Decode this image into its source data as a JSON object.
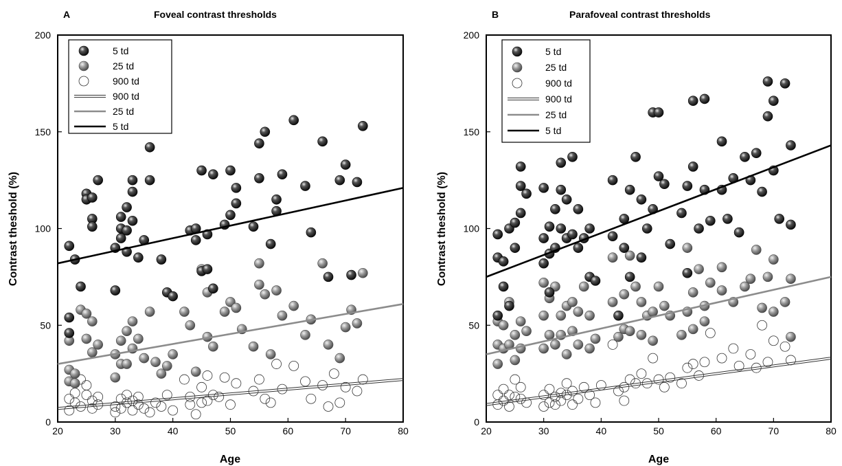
{
  "figure": {
    "panels": [
      {
        "label": "A",
        "title": "Foveal contrast thresholds"
      },
      {
        "label": "B",
        "title": "Parafoveal contrast thresholds"
      }
    ],
    "xlabel": "Age",
    "ylabel": "Contrast theshold (%)",
    "legend": [
      "5 td",
      "25 td",
      "900 td",
      "900 td",
      "25 td",
      "5 td"
    ]
  },
  "colors": {
    "dark_marker": "#222222",
    "gray_marker": "#8c8c8c",
    "open_marker_stroke": "#333333",
    "line_5td": "#000000",
    "line_25td": "#8c8c8c",
    "line_900td": "#333333"
  },
  "chart_data": [
    {
      "type": "scatter",
      "title": "Foveal contrast thresholds",
      "panel_label": "A",
      "xlabel": "Age",
      "ylabel": "Contrast theshold (%)",
      "xlim": [
        20,
        80
      ],
      "ylim": [
        0,
        200
      ],
      "xticks": [
        20,
        30,
        40,
        50,
        60,
        70,
        80
      ],
      "yticks": [
        0,
        50,
        100,
        150,
        200
      ],
      "legend_position": "top-left",
      "series": [
        {
          "name": "5 td",
          "kind": "points",
          "marker": "dark-sphere",
          "x": [
            22,
            22,
            22,
            23,
            24,
            25,
            25,
            26,
            26,
            26,
            27,
            30,
            30,
            31,
            31,
            31,
            32,
            32,
            32,
            33,
            33,
            33,
            34,
            35,
            36,
            36,
            38,
            39,
            40,
            43,
            44,
            44,
            45,
            45,
            46,
            46,
            47,
            47,
            49,
            50,
            50,
            51,
            51,
            54,
            55,
            55,
            56,
            57,
            58,
            58,
            59,
            61,
            63,
            64,
            66,
            67,
            69,
            70,
            71,
            72,
            73
          ],
          "y": [
            91,
            54,
            46,
            84,
            70,
            118,
            115,
            116,
            105,
            101,
            125,
            90,
            68,
            106,
            100,
            95,
            111,
            99,
            88,
            125,
            119,
            104,
            85,
            94,
            142,
            125,
            84,
            67,
            65,
            99,
            94,
            100,
            130,
            78,
            97,
            79,
            128,
            69,
            102,
            107,
            130,
            121,
            113,
            101,
            144,
            126,
            150,
            92,
            115,
            109,
            128,
            156,
            122,
            98,
            145,
            75,
            125,
            133,
            76,
            124,
            153
          ]
        },
        {
          "name": "25 td",
          "kind": "points",
          "marker": "gray-sphere",
          "x": [
            22,
            22,
            22,
            23,
            23,
            24,
            25,
            25,
            26,
            26,
            27,
            30,
            30,
            31,
            31,
            32,
            32,
            33,
            33,
            34,
            35,
            36,
            37,
            38,
            39,
            40,
            42,
            43,
            44,
            45,
            46,
            46,
            47,
            49,
            50,
            51,
            52,
            54,
            55,
            55,
            56,
            57,
            58,
            59,
            61,
            63,
            64,
            66,
            67,
            69,
            70,
            71,
            72,
            73
          ],
          "y": [
            21,
            42,
            27,
            25,
            20,
            58,
            56,
            43,
            52,
            36,
            40,
            35,
            23,
            42,
            30,
            47,
            30,
            52,
            38,
            43,
            33,
            57,
            31,
            25,
            29,
            35,
            57,
            50,
            26,
            79,
            67,
            44,
            39,
            57,
            62,
            59,
            48,
            39,
            82,
            71,
            66,
            35,
            68,
            55,
            60,
            45,
            53,
            82,
            40,
            33,
            49,
            58,
            51,
            77
          ]
        },
        {
          "name": "900 td",
          "kind": "points",
          "marker": "open-circle",
          "x": [
            22,
            22,
            23,
            23,
            24,
            24,
            25,
            25,
            26,
            26,
            27,
            27,
            30,
            30,
            31,
            31,
            32,
            32,
            33,
            33,
            34,
            34,
            35,
            36,
            37,
            38,
            39,
            40,
            42,
            43,
            43,
            44,
            45,
            45,
            46,
            46,
            47,
            48,
            49,
            50,
            51,
            54,
            55,
            56,
            57,
            58,
            59,
            61,
            63,
            64,
            66,
            67,
            68,
            69,
            70,
            72,
            73
          ],
          "y": [
            12,
            6,
            15,
            10,
            22,
            8,
            19,
            14,
            11,
            7,
            13,
            9,
            8,
            5,
            12,
            7,
            10,
            14,
            6,
            11,
            9,
            13,
            7,
            5,
            10,
            8,
            14,
            6,
            22,
            9,
            13,
            4,
            18,
            10,
            24,
            11,
            14,
            13,
            23,
            9,
            20,
            16,
            22,
            12,
            10,
            30,
            17,
            29,
            21,
            12,
            19,
            8,
            25,
            10,
            18,
            16,
            22
          ]
        },
        {
          "name": "900 td",
          "kind": "line",
          "x": [
            20,
            80
          ],
          "y": [
            7,
            22
          ]
        },
        {
          "name": "25 td",
          "kind": "line",
          "x": [
            20,
            80
          ],
          "y": [
            30,
            61
          ]
        },
        {
          "name": "5 td",
          "kind": "line",
          "x": [
            20,
            80
          ],
          "y": [
            82,
            121
          ]
        }
      ]
    },
    {
      "type": "scatter",
      "title": "Parafoveal contrast thresholds",
      "panel_label": "B",
      "xlabel": "Age",
      "ylabel": "Contrast theshold (%)",
      "xlim": [
        20,
        80
      ],
      "ylim": [
        0,
        200
      ],
      "xticks": [
        20,
        30,
        40,
        50,
        60,
        70,
        80
      ],
      "yticks": [
        0,
        50,
        100,
        150,
        200
      ],
      "legend_position": "top-left",
      "series": [
        {
          "name": "5 td",
          "kind": "points",
          "marker": "dark-sphere",
          "x": [
            22,
            22,
            22,
            23,
            23,
            24,
            24,
            25,
            25,
            26,
            26,
            26,
            27,
            30,
            30,
            30,
            31,
            31,
            31,
            32,
            32,
            33,
            33,
            33,
            34,
            34,
            35,
            35,
            36,
            36,
            37,
            38,
            38,
            39,
            42,
            42,
            43,
            44,
            44,
            45,
            45,
            46,
            47,
            47,
            48,
            49,
            49,
            50,
            50,
            51,
            52,
            54,
            55,
            55,
            56,
            56,
            57,
            58,
            58,
            59,
            61,
            61,
            62,
            63,
            64,
            65,
            66,
            67,
            68,
            69,
            69,
            70,
            70,
            71,
            72,
            73,
            73
          ],
          "y": [
            97,
            85,
            55,
            83,
            70,
            100,
            60,
            103,
            90,
            132,
            122,
            108,
            118,
            121,
            95,
            82,
            101,
            87,
            67,
            110,
            90,
            134,
            120,
            100,
            115,
            95,
            137,
            97,
            90,
            110,
            95,
            100,
            75,
            73,
            125,
            96,
            55,
            105,
            90,
            120,
            75,
            137,
            115,
            85,
            100,
            160,
            110,
            160,
            127,
            123,
            92,
            108,
            122,
            77,
            166,
            132,
            100,
            167,
            120,
            104,
            145,
            120,
            105,
            126,
            98,
            137,
            125,
            139,
            119,
            176,
            158,
            166,
            130,
            105,
            175,
            143,
            102
          ]
        },
        {
          "name": "25 td",
          "kind": "points",
          "marker": "gray-sphere",
          "x": [
            22,
            22,
            22,
            23,
            23,
            24,
            24,
            25,
            25,
            26,
            26,
            27,
            30,
            30,
            30,
            31,
            31,
            32,
            32,
            33,
            33,
            34,
            34,
            35,
            35,
            36,
            36,
            37,
            38,
            38,
            39,
            42,
            42,
            43,
            44,
            44,
            45,
            45,
            46,
            47,
            47,
            48,
            49,
            49,
            50,
            51,
            52,
            54,
            55,
            55,
            56,
            56,
            57,
            58,
            58,
            59,
            61,
            61,
            63,
            64,
            65,
            66,
            67,
            68,
            69,
            70,
            70,
            72,
            73,
            73
          ],
          "y": [
            52,
            40,
            30,
            50,
            38,
            62,
            40,
            45,
            32,
            52,
            38,
            47,
            72,
            55,
            38,
            64,
            45,
            70,
            40,
            55,
            45,
            60,
            35,
            62,
            47,
            57,
            40,
            70,
            55,
            38,
            43,
            85,
            62,
            44,
            66,
            48,
            86,
            47,
            70,
            62,
            45,
            55,
            57,
            42,
            70,
            60,
            55,
            45,
            90,
            57,
            67,
            48,
            79,
            60,
            52,
            72,
            80,
            68,
            62,
            98,
            70,
            74,
            89,
            59,
            75,
            84,
            57,
            62,
            74,
            44
          ]
        },
        {
          "name": "900 td",
          "kind": "points",
          "marker": "open-circle",
          "x": [
            22,
            22,
            23,
            23,
            24,
            24,
            25,
            25,
            26,
            26,
            27,
            30,
            30,
            31,
            31,
            32,
            32,
            33,
            33,
            34,
            34,
            35,
            35,
            36,
            37,
            38,
            39,
            40,
            42,
            43,
            44,
            44,
            45,
            46,
            47,
            48,
            49,
            50,
            51,
            52,
            54,
            55,
            56,
            57,
            58,
            59,
            61,
            63,
            64,
            66,
            67,
            68,
            69,
            70,
            72,
            73
          ],
          "y": [
            14,
            9,
            17,
            11,
            14,
            8,
            22,
            13,
            18,
            12,
            10,
            14,
            8,
            10,
            17,
            13,
            9,
            15,
            11,
            14,
            20,
            9,
            16,
            12,
            18,
            14,
            10,
            19,
            40,
            16,
            18,
            11,
            22,
            20,
            25,
            20,
            33,
            22,
            18,
            23,
            20,
            28,
            30,
            24,
            31,
            46,
            33,
            38,
            29,
            35,
            28,
            50,
            31,
            42,
            39,
            32
          ]
        },
        {
          "name": "900 td",
          "kind": "line",
          "x": [
            20,
            80
          ],
          "y": [
            9,
            33
          ]
        },
        {
          "name": "25 td",
          "kind": "line",
          "x": [
            20,
            80
          ],
          "y": [
            35,
            75
          ]
        },
        {
          "name": "5 td",
          "kind": "line",
          "x": [
            20,
            80
          ],
          "y": [
            75,
            143
          ]
        }
      ]
    }
  ]
}
